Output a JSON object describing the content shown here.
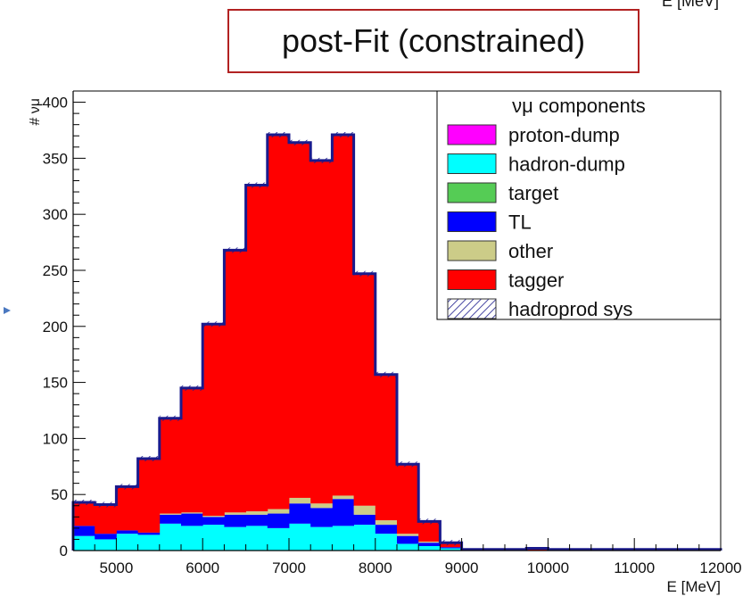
{
  "header": {
    "title": "post-Fit (constrained)",
    "top_axis_label": "E [MeV]"
  },
  "chart_data": {
    "type": "bar",
    "stacked": true,
    "histogram": true,
    "xlabel": "E [MeV]",
    "ylabel": "# ν_μ",
    "xlim": [
      4500,
      12000
    ],
    "ylim": [
      0,
      410
    ],
    "bin_edges": [
      4500,
      4750,
      5000,
      5250,
      5500,
      5750,
      6000,
      6250,
      6500,
      6750,
      7000,
      7250,
      7500,
      7750,
      8000,
      8250,
      8500,
      8750,
      9000,
      9250,
      9500,
      9750,
      10000,
      10250,
      10500,
      10750,
      11000,
      11250,
      11500,
      11750,
      12000
    ],
    "x_ticks": [
      5000,
      6000,
      7000,
      8000,
      9000,
      10000,
      11000,
      12000
    ],
    "x_tick_labels": [
      "5000",
      "6000",
      "7000",
      "8000",
      "9000",
      "10000",
      "11000",
      "12000"
    ],
    "y_ticks": [
      0,
      50,
      100,
      150,
      200,
      250,
      300,
      350,
      400
    ],
    "y_tick_labels": [
      "0",
      "50",
      "100",
      "150",
      "200",
      "250",
      "300",
      "350",
      "400"
    ],
    "legend": {
      "title": "ν_μ components",
      "placement": "top-right",
      "entries": [
        {
          "label": "proton-dump",
          "color": "#ff00ff",
          "hatched": false
        },
        {
          "label": "hadron-dump",
          "color": "#00ffff",
          "hatched": false
        },
        {
          "label": "target",
          "color": "#55cc55",
          "hatched": false
        },
        {
          "label": "TL",
          "color": "#0000ff",
          "hatched": false
        },
        {
          "label": "other",
          "color": "#cccc88",
          "hatched": false
        },
        {
          "label": "tagger",
          "color": "#ff0000",
          "hatched": false
        },
        {
          "label": "hadroprod sys",
          "color": "#1a1a8c",
          "hatched": true
        }
      ]
    },
    "series": [
      {
        "name": "proton-dump",
        "color": "#ff00ff",
        "values": [
          0,
          0,
          0,
          0,
          0,
          0,
          0,
          0,
          0,
          0,
          0,
          0,
          0,
          0,
          0,
          0,
          0,
          0,
          0,
          0,
          0,
          0,
          0,
          0,
          0,
          0,
          0,
          0,
          0,
          0
        ]
      },
      {
        "name": "hadron-dump",
        "color": "#00ffff",
        "values": [
          13,
          10,
          15,
          14,
          24,
          22,
          23,
          21,
          22,
          20,
          24,
          21,
          22,
          23,
          15,
          6,
          4,
          2,
          0,
          0,
          0,
          0,
          0,
          0,
          0,
          0,
          0,
          0,
          0,
          0
        ]
      },
      {
        "name": "target",
        "color": "#55cc55",
        "values": [
          0,
          0,
          0,
          0,
          0,
          0,
          0,
          0,
          0,
          0,
          0,
          0,
          0,
          0,
          0,
          0,
          0,
          0,
          0,
          0,
          0,
          0,
          0,
          0,
          0,
          0,
          0,
          0,
          0,
          0
        ]
      },
      {
        "name": "TL",
        "color": "#0000ff",
        "values": [
          9,
          5,
          3,
          2,
          8,
          11,
          7,
          11,
          10,
          13,
          18,
          17,
          24,
          9,
          8,
          7,
          3,
          1,
          0,
          0,
          0,
          0,
          0,
          0,
          0,
          0,
          0,
          0,
          0,
          0
        ]
      },
      {
        "name": "other",
        "color": "#cccc88",
        "values": [
          0,
          0,
          0,
          0,
          1,
          1,
          1,
          2,
          3,
          4,
          5,
          4,
          3,
          8,
          4,
          2,
          1,
          0,
          0,
          0,
          0,
          0,
          0,
          0,
          0,
          0,
          0,
          0,
          0,
          0
        ]
      },
      {
        "name": "tagger",
        "color": "#ff0000",
        "values": [
          21,
          26,
          39,
          66,
          85,
          111,
          171,
          234,
          291,
          334,
          317,
          306,
          322,
          207,
          130,
          62,
          18,
          4,
          1,
          1,
          1,
          2,
          1,
          1,
          1,
          1,
          1,
          1,
          1,
          1
        ]
      }
    ],
    "totals": [
      43,
      41,
      57,
      82,
      118,
      145,
      202,
      268,
      326,
      371,
      364,
      348,
      371,
      247,
      157,
      77,
      26,
      7,
      1,
      1,
      1,
      2,
      1,
      1,
      1,
      1,
      1,
      1,
      1,
      1
    ],
    "grid": false
  }
}
